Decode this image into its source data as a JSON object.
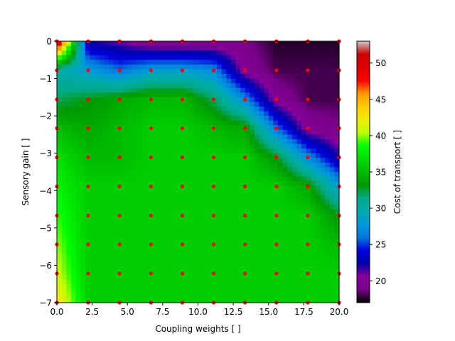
{
  "chart_data": {
    "type": "heatmap",
    "xlabel": "Coupling weights [ ]",
    "ylabel": "Sensory gain [ ]",
    "xlim": [
      0,
      20
    ],
    "ylim": [
      -7,
      0
    ],
    "x_ticks": [
      0.0,
      2.5,
      5.0,
      7.5,
      10.0,
      12.5,
      15.0,
      17.5,
      20.0
    ],
    "x_tick_labels": [
      "0.0",
      "2.5",
      "5.0",
      "7.5",
      "10.0",
      "12.5",
      "15.0",
      "17.5",
      "20.0"
    ],
    "y_ticks": [
      0,
      -1,
      -2,
      -3,
      -4,
      -5,
      -6,
      -7
    ],
    "y_tick_labels": [
      "0",
      "−1",
      "−2",
      "−3",
      "−4",
      "−5",
      "−6",
      "−7"
    ],
    "colorbar": {
      "label": "Cost of transport  [ ]",
      "colormap": "nipy_spectral",
      "range": [
        17,
        53
      ],
      "ticks": [
        20,
        25,
        30,
        35,
        40,
        45,
        50
      ],
      "tick_labels": [
        "20",
        "25",
        "30",
        "35",
        "40",
        "45",
        "50"
      ]
    },
    "grid_x": [
      0.0,
      2.22,
      4.44,
      6.67,
      8.89,
      11.11,
      13.33,
      15.56,
      17.78,
      20.0
    ],
    "grid_y": [
      0.0,
      -0.78,
      -1.56,
      -2.33,
      -3.11,
      -3.89,
      -4.67,
      -5.44,
      -6.22,
      -7.0
    ],
    "values": [
      [
        53,
        22,
        21,
        19,
        19,
        19,
        19,
        17.5,
        17.5,
        17.5
      ],
      [
        30,
        28,
        26,
        28,
        28,
        27,
        20,
        18,
        18,
        18
      ],
      [
        32,
        33,
        34,
        35,
        35,
        32,
        27,
        20,
        18,
        18
      ],
      [
        35,
        34,
        35,
        36,
        36,
        35,
        34,
        26,
        20,
        19
      ],
      [
        37,
        35,
        35,
        36,
        36,
        36,
        36,
        33,
        27,
        22
      ],
      [
        38,
        36,
        36,
        36,
        36,
        36,
        36,
        36,
        34,
        28
      ],
      [
        39,
        36,
        36,
        36,
        36,
        36,
        36,
        36,
        36,
        33
      ],
      [
        40,
        36,
        36,
        36,
        36,
        36,
        36,
        36,
        36,
        35
      ],
      [
        41,
        36,
        36,
        36,
        36,
        36,
        36,
        36,
        36,
        36
      ],
      [
        43,
        36,
        36,
        36,
        36,
        36,
        36,
        36,
        36,
        36
      ]
    ],
    "sample_points_color": "#ff0000"
  }
}
